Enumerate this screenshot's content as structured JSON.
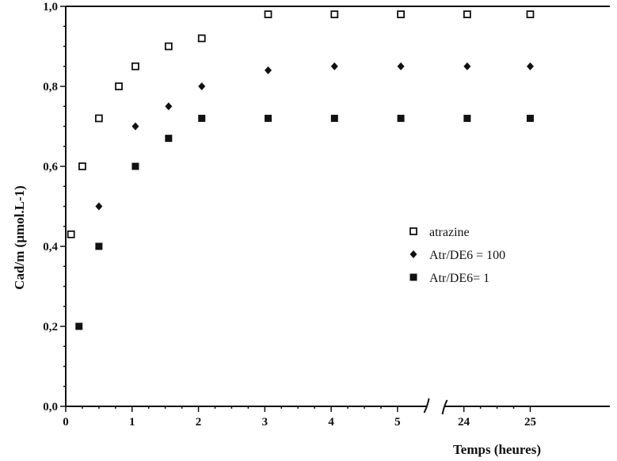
{
  "chart_data": {
    "type": "scatter",
    "xlabel": "Temps (heures)",
    "ylabel": "Cad/m (µmol.L-1)",
    "x_ticks": [
      "0",
      "1",
      "2",
      "3",
      "4",
      "5",
      "24",
      "25"
    ],
    "x_tick_values": [
      0,
      1,
      2,
      3,
      4,
      5,
      6,
      7
    ],
    "y_ticks": [
      "0,0",
      "0,2",
      "0,4",
      "0,6",
      "0,8",
      "1,0"
    ],
    "y_tick_values": [
      0,
      0.2,
      0.4,
      0.6,
      0.8,
      1.0
    ],
    "xlim": [
      0,
      8.2
    ],
    "ylim": [
      0,
      1.0
    ],
    "axis_break": "between 5 and 24",
    "legend_position": "center-right",
    "series": [
      {
        "name": "atrazine",
        "marker": "open-square",
        "color": "#111111",
        "points": [
          [
            0.08,
            0.43
          ],
          [
            0.25,
            0.6
          ],
          [
            0.5,
            0.72
          ],
          [
            0.8,
            0.8
          ],
          [
            1.05,
            0.85
          ],
          [
            1.55,
            0.9
          ],
          [
            2.05,
            0.92
          ],
          [
            3.05,
            0.98
          ],
          [
            4.05,
            0.98
          ],
          [
            5.05,
            0.98
          ],
          [
            6.05,
            0.98
          ],
          [
            7.0,
            0.98
          ]
        ]
      },
      {
        "name": "Atr/DE6 = 100",
        "marker": "diamond",
        "color": "#111111",
        "points": [
          [
            0.5,
            0.5
          ],
          [
            1.05,
            0.7
          ],
          [
            1.55,
            0.75
          ],
          [
            2.05,
            0.8
          ],
          [
            3.05,
            0.84
          ],
          [
            4.05,
            0.85
          ],
          [
            5.05,
            0.85
          ],
          [
            6.05,
            0.85
          ],
          [
            7.0,
            0.85
          ]
        ]
      },
      {
        "name": "Atr/DE6= 1",
        "marker": "filled-square",
        "color": "#111111",
        "points": [
          [
            0.2,
            0.2
          ],
          [
            0.5,
            0.4
          ],
          [
            1.05,
            0.6
          ],
          [
            1.55,
            0.67
          ],
          [
            2.05,
            0.72
          ],
          [
            3.05,
            0.72
          ],
          [
            4.05,
            0.72
          ],
          [
            5.05,
            0.72
          ],
          [
            6.05,
            0.72
          ],
          [
            7.0,
            0.72
          ]
        ]
      }
    ]
  }
}
